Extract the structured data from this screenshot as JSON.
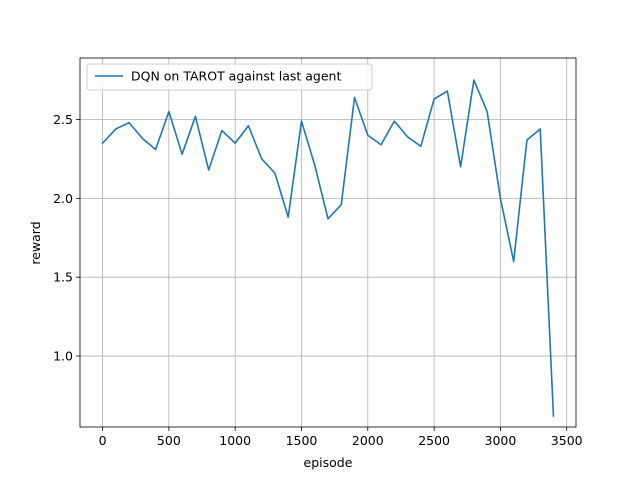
{
  "chart_data": {
    "type": "line",
    "title": "",
    "xlabel": "episode",
    "ylabel": "reward",
    "xlim": [
      -170,
      3570
    ],
    "ylim": [
      0.55,
      2.89
    ],
    "x_ticks": [
      0,
      500,
      1000,
      1500,
      2000,
      2500,
      3000,
      3500
    ],
    "y_ticks": [
      1.0,
      1.5,
      2.0,
      2.5
    ],
    "x_tick_labels": [
      "0",
      "500",
      "1000",
      "1500",
      "2000",
      "2500",
      "3000",
      "3500"
    ],
    "y_tick_labels": [
      "1.0",
      "1.5",
      "2.0",
      "2.5"
    ],
    "grid": true,
    "legend_position": "upper-left",
    "series": [
      {
        "name": "DQN on TAROT against last agent",
        "color": "#1f77b4",
        "x": [
          0,
          100,
          200,
          300,
          400,
          500,
          600,
          700,
          800,
          900,
          1000,
          1100,
          1200,
          1300,
          1400,
          1500,
          1600,
          1700,
          1800,
          1900,
          2000,
          2100,
          2200,
          2300,
          2400,
          2500,
          2600,
          2700,
          2800,
          2900,
          3000,
          3100,
          3200,
          3300,
          3400
        ],
        "y": [
          2.35,
          2.44,
          2.48,
          2.38,
          2.31,
          2.55,
          2.28,
          2.52,
          2.18,
          2.43,
          2.35,
          2.46,
          2.25,
          2.16,
          1.88,
          2.49,
          2.21,
          1.87,
          1.96,
          2.64,
          2.4,
          2.34,
          2.49,
          2.39,
          2.33,
          2.63,
          2.68,
          2.2,
          2.75,
          2.55,
          2.0,
          1.6,
          2.37,
          2.44,
          0.62
        ]
      }
    ]
  }
}
